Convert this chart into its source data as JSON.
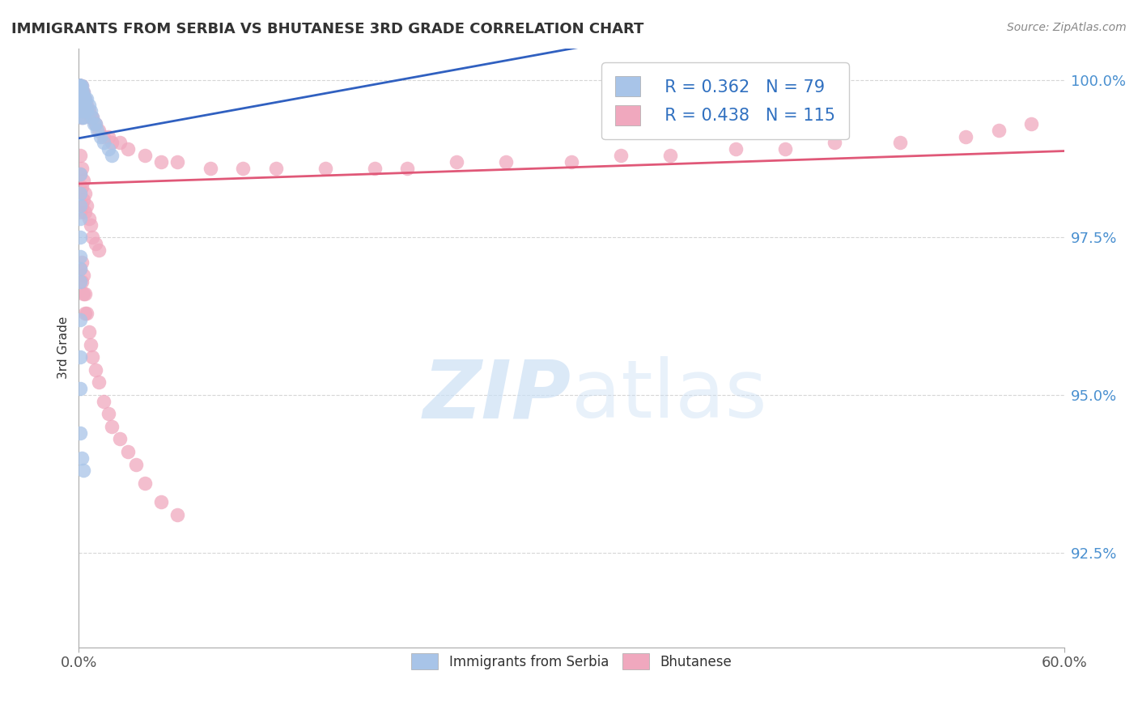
{
  "title": "IMMIGRANTS FROM SERBIA VS BHUTANESE 3RD GRADE CORRELATION CHART",
  "source_text": "Source: ZipAtlas.com",
  "ylabel": "3rd Grade",
  "xlim": [
    0.0,
    0.6
  ],
  "ylim": [
    0.91,
    1.005
  ],
  "x_tick_vals": [
    0.0,
    0.6
  ],
  "x_tick_labels": [
    "0.0%",
    "60.0%"
  ],
  "y_tick_vals": [
    0.925,
    0.95,
    0.975,
    1.0
  ],
  "y_tick_labels": [
    "92.5%",
    "95.0%",
    "97.5%",
    "100.0%"
  ],
  "serbia_R": 0.362,
  "serbia_N": 79,
  "bhutan_R": 0.438,
  "bhutan_N": 115,
  "serbia_color": "#a8c4e8",
  "bhutan_color": "#f0a8be",
  "serbia_line_color": "#3060c0",
  "bhutan_line_color": "#e05878",
  "watermark_color": "#cce0f5",
  "grid_color": "#cccccc",
  "ytick_color": "#4a90d0",
  "title_color": "#333333",
  "source_color": "#888888",
  "serbia_x": [
    0.001,
    0.001,
    0.001,
    0.001,
    0.001,
    0.001,
    0.001,
    0.001,
    0.001,
    0.001,
    0.001,
    0.001,
    0.001,
    0.001,
    0.001,
    0.001,
    0.001,
    0.001,
    0.001,
    0.001,
    0.001,
    0.001,
    0.001,
    0.001,
    0.001,
    0.001,
    0.001,
    0.001,
    0.001,
    0.001,
    0.001,
    0.001,
    0.001,
    0.001,
    0.001,
    0.002,
    0.002,
    0.002,
    0.002,
    0.002,
    0.002,
    0.002,
    0.002,
    0.002,
    0.002,
    0.002,
    0.003,
    0.003,
    0.003,
    0.003,
    0.003,
    0.004,
    0.004,
    0.005,
    0.005,
    0.006,
    0.007,
    0.008,
    0.009,
    0.01,
    0.011,
    0.013,
    0.015,
    0.018,
    0.02,
    0.001,
    0.001,
    0.001,
    0.001,
    0.001,
    0.002,
    0.003,
    0.001,
    0.001,
    0.001,
    0.001,
    0.001,
    0.001,
    0.001
  ],
  "serbia_y": [
    0.999,
    0.999,
    0.999,
    0.999,
    0.999,
    0.999,
    0.999,
    0.999,
    0.999,
    0.999,
    0.999,
    0.999,
    0.999,
    0.998,
    0.998,
    0.998,
    0.998,
    0.998,
    0.998,
    0.998,
    0.998,
    0.998,
    0.998,
    0.997,
    0.997,
    0.997,
    0.997,
    0.997,
    0.997,
    0.997,
    0.997,
    0.997,
    0.997,
    0.997,
    0.996,
    0.999,
    0.998,
    0.998,
    0.997,
    0.997,
    0.996,
    0.996,
    0.996,
    0.995,
    0.995,
    0.994,
    0.998,
    0.997,
    0.996,
    0.995,
    0.994,
    0.997,
    0.996,
    0.997,
    0.995,
    0.996,
    0.995,
    0.994,
    0.993,
    0.993,
    0.992,
    0.991,
    0.99,
    0.989,
    0.988,
    0.97,
    0.962,
    0.956,
    0.951,
    0.944,
    0.94,
    0.938,
    0.985,
    0.982,
    0.98,
    0.978,
    0.975,
    0.972,
    0.968
  ],
  "bhutan_x": [
    0.001,
    0.001,
    0.001,
    0.001,
    0.001,
    0.001,
    0.001,
    0.001,
    0.001,
    0.001,
    0.001,
    0.001,
    0.001,
    0.001,
    0.001,
    0.001,
    0.001,
    0.001,
    0.001,
    0.001,
    0.001,
    0.001,
    0.001,
    0.001,
    0.001,
    0.002,
    0.002,
    0.002,
    0.002,
    0.002,
    0.002,
    0.002,
    0.002,
    0.002,
    0.002,
    0.003,
    0.003,
    0.003,
    0.003,
    0.003,
    0.004,
    0.004,
    0.005,
    0.005,
    0.006,
    0.007,
    0.008,
    0.01,
    0.012,
    0.015,
    0.018,
    0.02,
    0.025,
    0.03,
    0.04,
    0.05,
    0.06,
    0.08,
    0.1,
    0.12,
    0.15,
    0.18,
    0.2,
    0.23,
    0.26,
    0.3,
    0.33,
    0.36,
    0.4,
    0.43,
    0.46,
    0.5,
    0.54,
    0.56,
    0.58,
    0.001,
    0.001,
    0.001,
    0.001,
    0.002,
    0.002,
    0.002,
    0.003,
    0.003,
    0.004,
    0.004,
    0.005,
    0.006,
    0.007,
    0.008,
    0.01,
    0.012,
    0.001,
    0.001,
    0.002,
    0.002,
    0.003,
    0.003,
    0.004,
    0.004,
    0.005,
    0.006,
    0.007,
    0.008,
    0.01,
    0.012,
    0.015,
    0.018,
    0.02,
    0.025,
    0.03,
    0.035,
    0.04,
    0.05,
    0.06
  ],
  "bhutan_y": [
    0.999,
    0.999,
    0.999,
    0.999,
    0.999,
    0.999,
    0.999,
    0.999,
    0.999,
    0.998,
    0.998,
    0.998,
    0.998,
    0.998,
    0.998,
    0.998,
    0.997,
    0.997,
    0.997,
    0.997,
    0.997,
    0.997,
    0.996,
    0.996,
    0.996,
    0.999,
    0.998,
    0.998,
    0.997,
    0.997,
    0.996,
    0.996,
    0.995,
    0.995,
    0.994,
    0.998,
    0.997,
    0.997,
    0.996,
    0.995,
    0.997,
    0.996,
    0.996,
    0.995,
    0.995,
    0.994,
    0.994,
    0.993,
    0.992,
    0.991,
    0.991,
    0.99,
    0.99,
    0.989,
    0.988,
    0.987,
    0.987,
    0.986,
    0.986,
    0.986,
    0.986,
    0.986,
    0.986,
    0.987,
    0.987,
    0.987,
    0.988,
    0.988,
    0.989,
    0.989,
    0.99,
    0.99,
    0.991,
    0.992,
    0.993,
    0.988,
    0.985,
    0.982,
    0.979,
    0.986,
    0.983,
    0.98,
    0.984,
    0.981,
    0.982,
    0.979,
    0.98,
    0.978,
    0.977,
    0.975,
    0.974,
    0.973,
    0.97,
    0.968,
    0.971,
    0.968,
    0.969,
    0.966,
    0.966,
    0.963,
    0.963,
    0.96,
    0.958,
    0.956,
    0.954,
    0.952,
    0.949,
    0.947,
    0.945,
    0.943,
    0.941,
    0.939,
    0.936,
    0.933,
    0.931
  ]
}
